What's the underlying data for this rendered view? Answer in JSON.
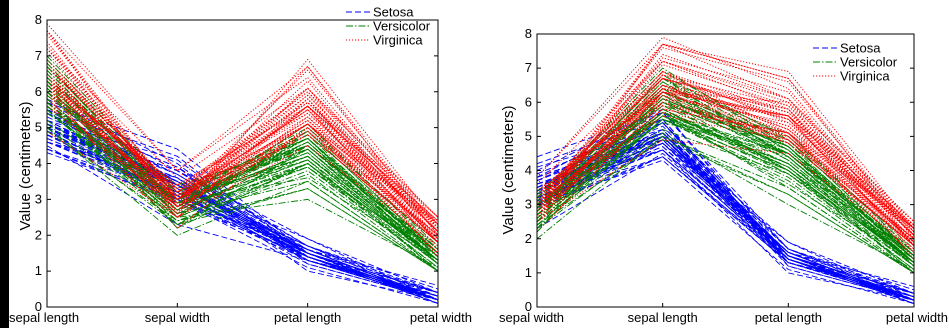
{
  "chart_data": [
    {
      "type": "line",
      "subtype": "parallel-coordinates",
      "title": "",
      "xlabel": "",
      "ylabel": "Value (centimeters)",
      "ylim": [
        0,
        8
      ],
      "yticks": [
        "0",
        "1",
        "2",
        "3",
        "4",
        "5",
        "6",
        "7",
        "8"
      ],
      "categories": [
        "sepal length",
        "sepal width",
        "petal length",
        "petal width"
      ],
      "legend_position": "top-right",
      "series": [
        {
          "name": "Setosa",
          "color": "#0000ff",
          "dash": "dashed",
          "lines": [
            [
              5.1,
              3.5,
              1.4,
              0.2
            ],
            [
              4.9,
              3.0,
              1.4,
              0.2
            ],
            [
              4.7,
              3.2,
              1.3,
              0.2
            ],
            [
              4.6,
              3.1,
              1.5,
              0.2
            ],
            [
              5.0,
              3.6,
              1.4,
              0.2
            ],
            [
              5.4,
              3.9,
              1.7,
              0.4
            ],
            [
              4.6,
              3.4,
              1.4,
              0.3
            ],
            [
              5.0,
              3.4,
              1.5,
              0.2
            ],
            [
              4.4,
              2.9,
              1.4,
              0.2
            ],
            [
              4.9,
              3.1,
              1.5,
              0.1
            ],
            [
              5.4,
              3.7,
              1.5,
              0.2
            ],
            [
              4.8,
              3.4,
              1.6,
              0.2
            ],
            [
              4.8,
              3.0,
              1.4,
              0.1
            ],
            [
              4.3,
              3.0,
              1.1,
              0.1
            ],
            [
              5.8,
              4.0,
              1.2,
              0.2
            ],
            [
              5.7,
              4.4,
              1.5,
              0.4
            ],
            [
              5.4,
              3.9,
              1.3,
              0.4
            ],
            [
              5.1,
              3.5,
              1.4,
              0.3
            ],
            [
              5.7,
              3.8,
              1.7,
              0.3
            ],
            [
              5.1,
              3.8,
              1.5,
              0.3
            ],
            [
              5.4,
              3.4,
              1.7,
              0.2
            ],
            [
              5.1,
              3.7,
              1.5,
              0.4
            ],
            [
              4.6,
              3.6,
              1.0,
              0.2
            ],
            [
              5.1,
              3.3,
              1.7,
              0.5
            ],
            [
              4.8,
              3.4,
              1.9,
              0.2
            ],
            [
              5.0,
              3.0,
              1.6,
              0.2
            ],
            [
              5.0,
              3.4,
              1.6,
              0.4
            ],
            [
              5.2,
              3.5,
              1.5,
              0.2
            ],
            [
              5.2,
              3.4,
              1.4,
              0.2
            ],
            [
              4.7,
              3.2,
              1.6,
              0.2
            ],
            [
              4.8,
              3.1,
              1.6,
              0.2
            ],
            [
              5.4,
              3.4,
              1.5,
              0.4
            ],
            [
              5.2,
              4.1,
              1.5,
              0.1
            ],
            [
              5.5,
              4.2,
              1.4,
              0.2
            ],
            [
              4.9,
              3.1,
              1.5,
              0.2
            ],
            [
              5.0,
              3.2,
              1.2,
              0.2
            ],
            [
              5.5,
              3.5,
              1.3,
              0.2
            ],
            [
              4.9,
              3.6,
              1.4,
              0.1
            ],
            [
              4.4,
              3.0,
              1.3,
              0.2
            ],
            [
              5.1,
              3.4,
              1.5,
              0.2
            ],
            [
              5.0,
              3.5,
              1.3,
              0.3
            ],
            [
              4.5,
              2.3,
              1.3,
              0.3
            ],
            [
              4.4,
              3.2,
              1.3,
              0.2
            ],
            [
              5.0,
              3.5,
              1.6,
              0.6
            ],
            [
              5.1,
              3.8,
              1.9,
              0.4
            ],
            [
              4.8,
              3.0,
              1.4,
              0.3
            ],
            [
              5.1,
              3.8,
              1.6,
              0.2
            ],
            [
              4.6,
              3.2,
              1.4,
              0.2
            ],
            [
              5.3,
              3.7,
              1.5,
              0.2
            ],
            [
              5.0,
              3.3,
              1.4,
              0.2
            ]
          ]
        },
        {
          "name": "Versicolor",
          "color": "#008000",
          "dash": "dashdot",
          "lines": [
            [
              7.0,
              3.2,
              4.7,
              1.4
            ],
            [
              6.4,
              3.2,
              4.5,
              1.5
            ],
            [
              6.9,
              3.1,
              4.9,
              1.5
            ],
            [
              5.5,
              2.3,
              4.0,
              1.3
            ],
            [
              6.5,
              2.8,
              4.6,
              1.5
            ],
            [
              5.7,
              2.8,
              4.5,
              1.3
            ],
            [
              6.3,
              3.3,
              4.7,
              1.6
            ],
            [
              4.9,
              2.4,
              3.3,
              1.0
            ],
            [
              6.6,
              2.9,
              4.6,
              1.3
            ],
            [
              5.2,
              2.7,
              3.9,
              1.4
            ],
            [
              5.0,
              2.0,
              3.5,
              1.0
            ],
            [
              5.9,
              3.0,
              4.2,
              1.5
            ],
            [
              6.0,
              2.2,
              4.0,
              1.0
            ],
            [
              6.1,
              2.9,
              4.7,
              1.4
            ],
            [
              5.6,
              2.9,
              3.6,
              1.3
            ],
            [
              6.7,
              3.1,
              4.4,
              1.4
            ],
            [
              5.6,
              3.0,
              4.5,
              1.5
            ],
            [
              5.8,
              2.7,
              4.1,
              1.0
            ],
            [
              6.2,
              2.2,
              4.5,
              1.5
            ],
            [
              5.6,
              2.5,
              3.9,
              1.1
            ],
            [
              5.9,
              3.2,
              4.8,
              1.8
            ],
            [
              6.1,
              2.8,
              4.0,
              1.3
            ],
            [
              6.3,
              2.5,
              4.9,
              1.5
            ],
            [
              6.1,
              2.8,
              4.7,
              1.2
            ],
            [
              6.4,
              2.9,
              4.3,
              1.3
            ],
            [
              6.6,
              3.0,
              4.4,
              1.4
            ],
            [
              6.8,
              2.8,
              4.8,
              1.4
            ],
            [
              6.7,
              3.0,
              5.0,
              1.7
            ],
            [
              6.0,
              2.9,
              4.5,
              1.5
            ],
            [
              5.7,
              2.6,
              3.5,
              1.0
            ],
            [
              5.5,
              2.4,
              3.8,
              1.1
            ],
            [
              5.5,
              2.4,
              3.7,
              1.0
            ],
            [
              5.8,
              2.7,
              3.9,
              1.2
            ],
            [
              6.0,
              2.7,
              5.1,
              1.6
            ],
            [
              5.4,
              3.0,
              4.5,
              1.5
            ],
            [
              6.0,
              3.4,
              4.5,
              1.6
            ],
            [
              6.7,
              3.1,
              4.7,
              1.5
            ],
            [
              6.3,
              2.3,
              4.4,
              1.3
            ],
            [
              5.6,
              3.0,
              4.1,
              1.3
            ],
            [
              5.5,
              2.5,
              4.0,
              1.3
            ],
            [
              5.5,
              2.6,
              4.4,
              1.2
            ],
            [
              6.1,
              3.0,
              4.6,
              1.4
            ],
            [
              5.8,
              2.6,
              4.0,
              1.2
            ],
            [
              5.0,
              2.3,
              3.3,
              1.0
            ],
            [
              5.6,
              2.7,
              4.2,
              1.3
            ],
            [
              5.7,
              3.0,
              4.2,
              1.2
            ],
            [
              5.7,
              2.9,
              4.2,
              1.3
            ],
            [
              6.2,
              2.9,
              4.3,
              1.3
            ],
            [
              5.1,
              2.5,
              3.0,
              1.1
            ],
            [
              5.7,
              2.8,
              4.1,
              1.3
            ]
          ]
        },
        {
          "name": "Virginica",
          "color": "#ff0000",
          "dash": "dotted",
          "lines": [
            [
              6.3,
              3.3,
              6.0,
              2.5
            ],
            [
              5.8,
              2.7,
              5.1,
              1.9
            ],
            [
              7.1,
              3.0,
              5.9,
              2.1
            ],
            [
              6.3,
              2.9,
              5.6,
              1.8
            ],
            [
              6.5,
              3.0,
              5.8,
              2.2
            ],
            [
              7.6,
              3.0,
              6.6,
              2.1
            ],
            [
              4.9,
              2.5,
              4.5,
              1.7
            ],
            [
              7.3,
              2.9,
              6.3,
              1.8
            ],
            [
              6.7,
              2.5,
              5.8,
              1.8
            ],
            [
              7.2,
              3.6,
              6.1,
              2.5
            ],
            [
              6.5,
              3.2,
              5.1,
              2.0
            ],
            [
              6.4,
              2.7,
              5.3,
              1.9
            ],
            [
              6.8,
              3.0,
              5.5,
              2.1
            ],
            [
              5.7,
              2.5,
              5.0,
              2.0
            ],
            [
              5.8,
              2.8,
              5.1,
              2.4
            ],
            [
              6.4,
              3.2,
              5.3,
              2.3
            ],
            [
              6.5,
              3.0,
              5.5,
              1.8
            ],
            [
              7.7,
              3.8,
              6.7,
              2.2
            ],
            [
              7.7,
              2.6,
              6.9,
              2.3
            ],
            [
              6.0,
              2.2,
              5.0,
              1.5
            ],
            [
              6.9,
              3.2,
              5.7,
              2.3
            ],
            [
              5.6,
              2.8,
              4.9,
              2.0
            ],
            [
              7.7,
              2.8,
              6.7,
              2.0
            ],
            [
              6.3,
              2.7,
              4.9,
              1.8
            ],
            [
              6.7,
              3.3,
              5.7,
              2.1
            ],
            [
              7.2,
              3.2,
              6.0,
              1.8
            ],
            [
              6.2,
              2.8,
              4.8,
              1.8
            ],
            [
              6.1,
              3.0,
              4.9,
              1.8
            ],
            [
              6.4,
              2.8,
              5.6,
              2.1
            ],
            [
              7.2,
              3.0,
              5.8,
              1.6
            ],
            [
              7.4,
              2.8,
              6.1,
              1.9
            ],
            [
              7.9,
              3.8,
              6.4,
              2.0
            ],
            [
              6.4,
              2.8,
              5.6,
              2.2
            ],
            [
              6.3,
              2.8,
              5.1,
              1.5
            ],
            [
              6.1,
              2.6,
              5.6,
              1.4
            ],
            [
              7.7,
              3.0,
              6.1,
              2.3
            ],
            [
              6.3,
              3.4,
              5.6,
              2.4
            ],
            [
              6.4,
              3.1,
              5.5,
              1.8
            ],
            [
              6.0,
              3.0,
              4.8,
              1.8
            ],
            [
              6.9,
              3.1,
              5.4,
              2.1
            ],
            [
              6.7,
              3.1,
              5.6,
              2.4
            ],
            [
              6.9,
              3.1,
              5.1,
              2.3
            ],
            [
              5.8,
              2.7,
              5.1,
              1.9
            ],
            [
              6.8,
              3.2,
              5.9,
              2.3
            ],
            [
              6.7,
              3.3,
              5.7,
              2.5
            ],
            [
              6.7,
              3.0,
              5.2,
              2.3
            ],
            [
              6.3,
              2.5,
              5.0,
              1.9
            ],
            [
              6.5,
              3.0,
              5.2,
              2.0
            ],
            [
              6.2,
              3.4,
              5.4,
              2.3
            ],
            [
              5.9,
              3.0,
              5.1,
              1.8
            ]
          ]
        }
      ]
    },
    {
      "type": "line",
      "subtype": "parallel-coordinates",
      "title": "",
      "xlabel": "",
      "ylabel": "Value (centimeters)",
      "ylim": [
        0,
        8
      ],
      "yticks": [
        "0",
        "1",
        "2",
        "3",
        "4",
        "5",
        "6",
        "7",
        "8"
      ],
      "categories": [
        "sepal width",
        "sepal length",
        "petal length",
        "petal width"
      ],
      "axis_order": [
        1,
        0,
        2,
        3
      ],
      "legend_position": "top-right",
      "series_from_chart": 0,
      "series_names": [
        "Setosa",
        "Versicolor",
        "Virginica"
      ]
    }
  ]
}
